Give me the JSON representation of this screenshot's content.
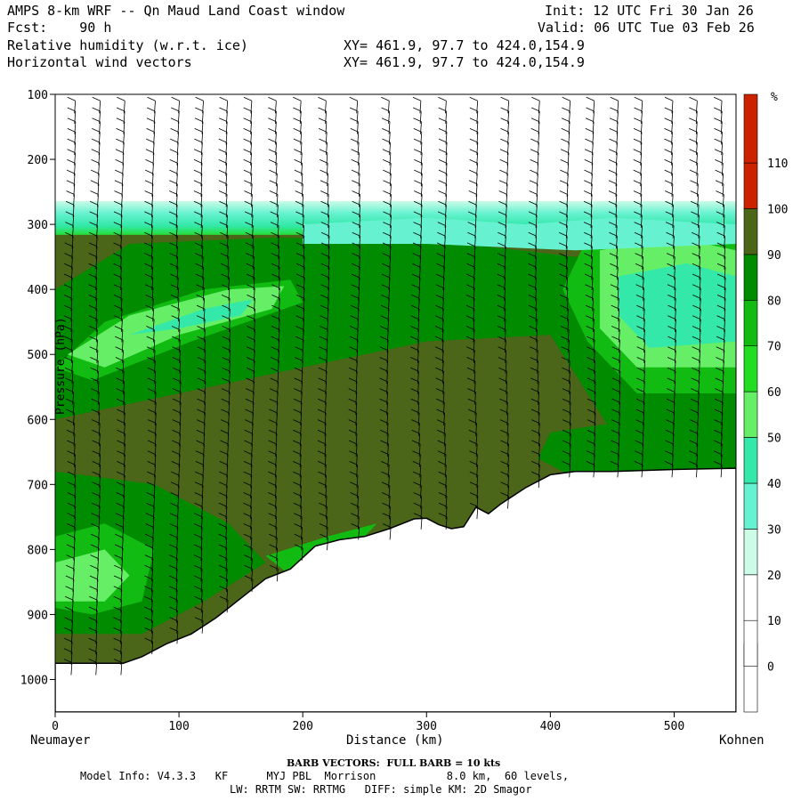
{
  "header": {
    "title": "AMPS 8-km WRF -- Qn Maud Land Coast window",
    "forecast": "Fcst:    90 h",
    "init": "Init: 12 UTC Fri 30 Jan 26",
    "valid": "Valid: 06 UTC Tue 03 Feb 26",
    "field1": "Relative humidity (w.r.t. ice)",
    "field2": "Horizontal wind vectors",
    "xy1": "XY= 461.9, 97.7 to 424.0,154.9",
    "xy2": "XY= 461.9, 97.7 to 424.0,154.9"
  },
  "footer": {
    "barb_note": "BARB VECTORS:  FULL BARB = 10 kts",
    "model_line1": "Model Info: V4.3.3   KF      MYJ PBL  Morrison           8.0 km,  60 levels,",
    "model_line2": "LW: RRTM SW: RRTMG   DIFF: simple KM: 2D Smagor"
  },
  "chart_data": {
    "type": "contour-cross-section",
    "xlabel": "Distance (km)",
    "ylabel": "Pressure (hPa)",
    "left_endpoint": "Neumayer",
    "right_endpoint": "Kohnen",
    "xlim": [
      0,
      550
    ],
    "ylim": [
      1050,
      100
    ],
    "x_ticks": [
      "0",
      "100",
      "200",
      "300",
      "400",
      "500"
    ],
    "x_tick_values": [
      0,
      100,
      200,
      300,
      400,
      500
    ],
    "y_ticks": [
      "100",
      "200",
      "300",
      "400",
      "500",
      "600",
      "700",
      "800",
      "900",
      "1000"
    ],
    "y_tick_values": [
      100,
      200,
      300,
      400,
      500,
      600,
      700,
      800,
      900,
      1000
    ],
    "colorbar_unit": "%",
    "colorbar_labels": [
      "0",
      "10",
      "20",
      "30",
      "40",
      "50",
      "60",
      "70",
      "80",
      "90",
      "100",
      "110"
    ],
    "colorbar_levels": [
      0,
      10,
      20,
      30,
      40,
      50,
      60,
      70,
      80,
      90,
      100,
      110
    ],
    "colorbar_colors": [
      "#ffffff",
      "#ffffff",
      "#ffffff",
      "#ccfce8",
      "#66f2d0",
      "#33e8a8",
      "#66ee66",
      "#22dd22",
      "#11bb11",
      "#008b00",
      "#4b6618",
      "#cc2200"
    ],
    "terrain_km": [
      0,
      20,
      40,
      55,
      70,
      90,
      110,
      130,
      150,
      170,
      190,
      210,
      230,
      250,
      270,
      290,
      300,
      310,
      320,
      330,
      340,
      350,
      360,
      380,
      400,
      420,
      450,
      500,
      550
    ],
    "terrain_hpa": [
      975,
      975,
      975,
      975,
      965,
      945,
      930,
      905,
      875,
      845,
      830,
      795,
      785,
      780,
      768,
      753,
      752,
      762,
      768,
      765,
      735,
      745,
      730,
      705,
      685,
      680,
      680,
      677,
      675
    ],
    "moist_top_hpa": 275,
    "barb_columns_km": [
      15,
      35,
      55,
      80,
      100,
      120,
      140,
      160,
      180,
      200,
      220,
      245,
      270,
      295,
      315,
      340,
      365,
      390,
      415,
      435,
      455,
      475,
      500,
      520,
      540
    ]
  }
}
